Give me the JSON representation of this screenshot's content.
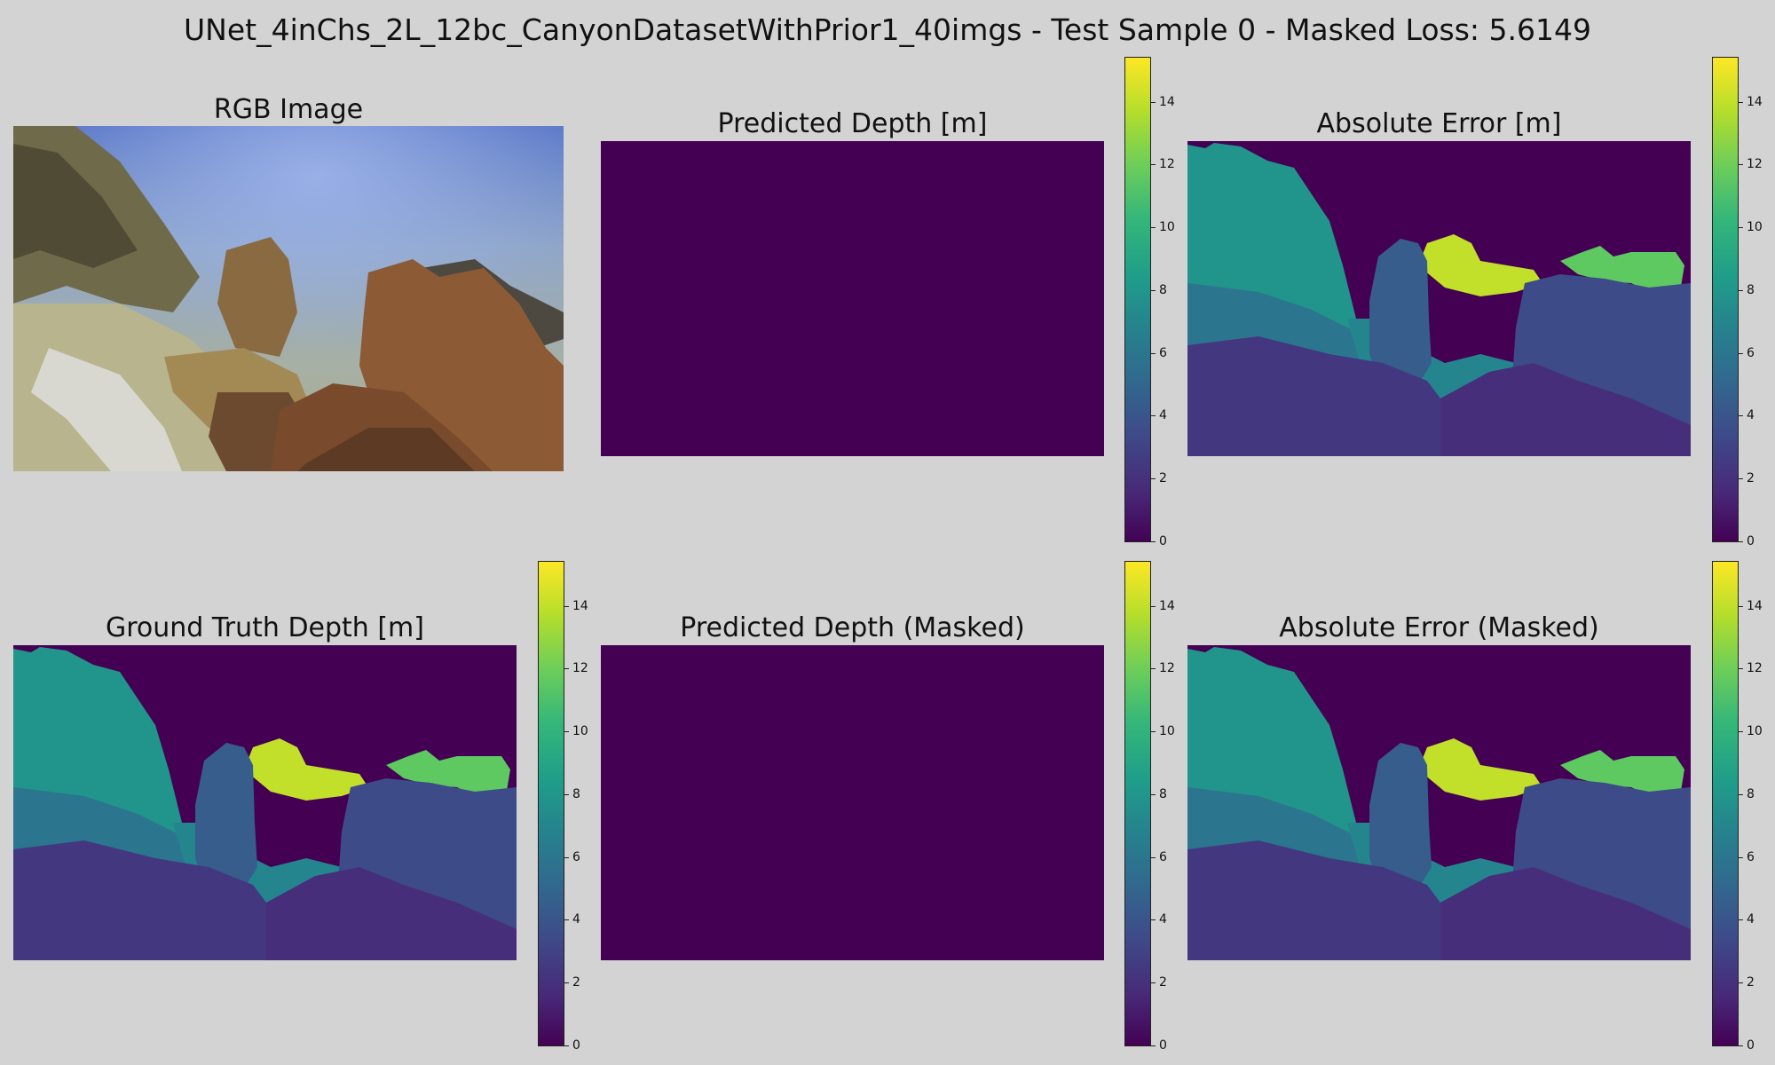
{
  "suptitle": "UNet_4inChs_2L_12bc_CanyonDatasetWithPrior1_40imgs - Test Sample 0 - Masked Loss: 5.6149",
  "panels": {
    "rgb": {
      "title": "RGB Image"
    },
    "pred": {
      "title": "Predicted Depth [m]"
    },
    "abs_err": {
      "title": "Absolute Error [m]"
    },
    "gt": {
      "title": "Ground Truth Depth [m]"
    },
    "pred_masked": {
      "title": "Predicted Depth (Masked)"
    },
    "abs_err_masked": {
      "title": "Absolute Error (Masked)"
    }
  },
  "colormap": [
    "#440154",
    "#482878",
    "#3e4a89",
    "#31688e",
    "#26828e",
    "#1f9e89",
    "#35b779",
    "#6ece58",
    "#b5de2b",
    "#fde725"
  ],
  "chart_data": {
    "type": "heatmap",
    "colormap_name": "viridis",
    "colorbar_range": [
      0,
      15.4
    ],
    "colorbar_ticks": [
      "0",
      "2",
      "4",
      "6",
      "8",
      "10",
      "12",
      "14"
    ],
    "colorbar_tick_values": [
      0,
      2,
      4,
      6,
      8,
      10,
      12,
      14
    ],
    "predicted_depth_value": 0,
    "depth_region_values_m": {
      "background_unmasked": 0,
      "left_wall_upper": 8,
      "left_wall_lower": 6,
      "center_pillar": 4.5,
      "center_channel": 7,
      "far_rocks_yellow": 14,
      "far_rocks_green": 11.5,
      "right_rock": 3.5,
      "lower_left_ground": 2.5,
      "foreground_rock": 2
    }
  }
}
